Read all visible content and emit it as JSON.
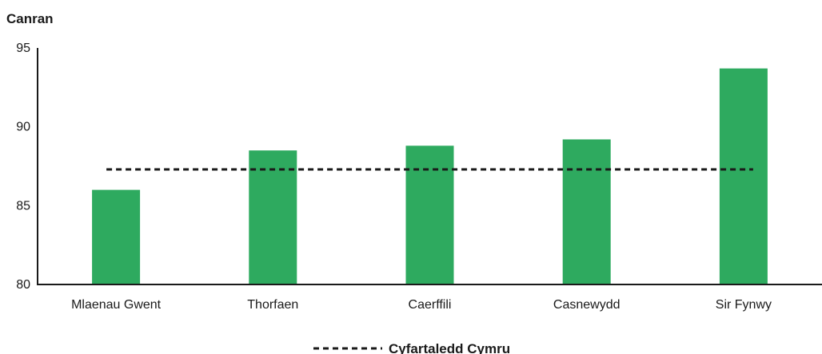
{
  "chart_data": {
    "type": "bar",
    "ylabel": "Canran",
    "ylim": [
      80,
      95
    ],
    "yticks": [
      80,
      85,
      90,
      95
    ],
    "categories": [
      "Mlaenau Gwent",
      "Thorfaen",
      "Caerffili",
      "Casnewydd",
      "Sir Fynwy"
    ],
    "series": [
      {
        "values": [
          86.0,
          88.5,
          88.8,
          89.2,
          93.7
        ],
        "color": "#2eaa5f"
      }
    ],
    "reference_line": {
      "name": "Cyfartaledd Cymru",
      "value": 87.3,
      "style": "dashed",
      "color": "#1a1a1a"
    },
    "grid": false,
    "legend_position": "bottom-center"
  }
}
